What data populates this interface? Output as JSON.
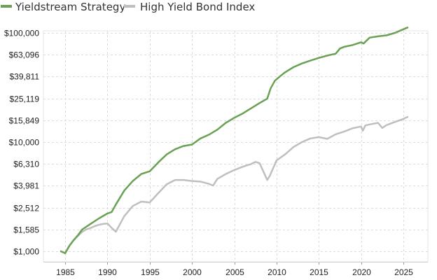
{
  "chart_data": {
    "type": "line",
    "scale": "log",
    "grid": true,
    "legend_position": "top-left",
    "ylim": [
      1000,
      110000
    ],
    "xlim": [
      1984,
      2026
    ],
    "y_ticks": [
      {
        "value": 1000,
        "label": "$1,000"
      },
      {
        "value": 1585,
        "label": "$1,585"
      },
      {
        "value": 2512,
        "label": "$2,512"
      },
      {
        "value": 3981,
        "label": "$3,981"
      },
      {
        "value": 6310,
        "label": "$6,310"
      },
      {
        "value": 10000,
        "label": "$10,000"
      },
      {
        "value": 15849,
        "label": "$15,849"
      },
      {
        "value": 25119,
        "label": "$25,119"
      },
      {
        "value": 39811,
        "label": "$39,811"
      },
      {
        "value": 63096,
        "label": "$63,096"
      },
      {
        "value": 100000,
        "label": "$100,000"
      }
    ],
    "x_ticks": [
      {
        "value": 1985,
        "label": "1985"
      },
      {
        "value": 1990,
        "label": "1990"
      },
      {
        "value": 1995,
        "label": "1995"
      },
      {
        "value": 2000,
        "label": "2000"
      },
      {
        "value": 2005,
        "label": "2005"
      },
      {
        "value": 2010,
        "label": "2010"
      },
      {
        "value": 2015,
        "label": "2015"
      },
      {
        "value": 2020,
        "label": "2020"
      },
      {
        "value": 2025,
        "label": "2025"
      }
    ],
    "series": [
      {
        "name": "Yieldstream Strategy",
        "color": "#6aa155",
        "x": [
          1984.5,
          1985,
          1985.5,
          1986,
          1986.5,
          1987,
          1987.5,
          1988,
          1989,
          1990,
          1990.5,
          1991,
          1992,
          1993,
          1994,
          1995,
          1996,
          1997,
          1998,
          1999,
          2000,
          2001,
          2002,
          2003,
          2004,
          2005,
          2006,
          2007,
          2008,
          2008.9,
          2009.3,
          2009.8,
          2010.5,
          2011,
          2012,
          2013,
          2014,
          2015,
          2016,
          2017,
          2017.5,
          2018,
          2019,
          2020,
          2020.3,
          2021,
          2022,
          2023,
          2024,
          2025,
          2025.5
        ],
        "values": [
          1000,
          960,
          1120,
          1260,
          1400,
          1580,
          1680,
          1780,
          2000,
          2220,
          2290,
          2680,
          3600,
          4400,
          5100,
          5400,
          6500,
          7700,
          8600,
          9200,
          9500,
          10800,
          11700,
          13000,
          15000,
          16700,
          18300,
          20400,
          22800,
          25000,
          31000,
          36500,
          40500,
          43500,
          48500,
          52500,
          55700,
          59000,
          62000,
          64500,
          72000,
          74500,
          77500,
          82000,
          80000,
          90500,
          93000,
          95000,
          100000,
          108000,
          112000
        ]
      },
      {
        "name": "High Yield Bond Index",
        "color": "#bfbfbf",
        "x": [
          1984.5,
          1985,
          1985.5,
          1986,
          1987,
          1987.5,
          1988,
          1988.5,
          1989,
          1989.5,
          1990,
          1990.5,
          1991,
          1992,
          1993,
          1994,
          1995,
          1996,
          1997,
          1998,
          1999,
          2000,
          2001,
          2002,
          2002.5,
          2003,
          2004,
          2005,
          2006,
          2007,
          2007.5,
          2008,
          2008.9,
          2009.2,
          2010,
          2011,
          2012,
          2013,
          2014,
          2015,
          2016,
          2017,
          2018,
          2019,
          2020,
          2020.2,
          2020.5,
          2021,
          2022,
          2022.5,
          2023,
          2024,
          2025,
          2025.5
        ],
        "values": [
          1000,
          960,
          1120,
          1270,
          1500,
          1590,
          1630,
          1700,
          1750,
          1780,
          1800,
          1640,
          1510,
          2100,
          2600,
          2850,
          2800,
          3400,
          4100,
          4500,
          4500,
          4400,
          4350,
          4150,
          4000,
          4600,
          5100,
          5550,
          5950,
          6300,
          6600,
          6400,
          4500,
          4900,
          6800,
          7700,
          9000,
          10000,
          10800,
          11100,
          10700,
          11800,
          12500,
          13400,
          13900,
          12700,
          14200,
          14500,
          15000,
          13500,
          14300,
          15300,
          16300,
          17000
        ]
      }
    ]
  }
}
